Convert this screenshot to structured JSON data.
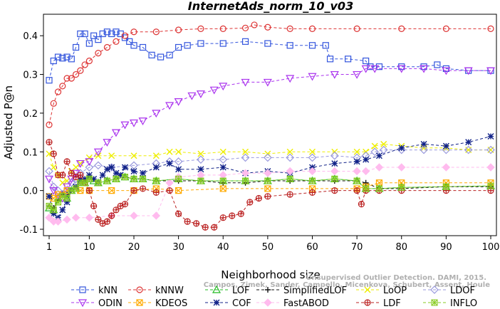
{
  "chart_data": {
    "type": "line",
    "title": "InternetAds_norm_10_v03",
    "xlabel": "Neighborhood size",
    "ylabel": "Adjusted P@n",
    "xlim": [
      1,
      100
    ],
    "ylim": [
      -0.1,
      0.45
    ],
    "xticks": [
      1,
      10,
      20,
      30,
      40,
      50,
      60,
      70,
      80,
      90,
      100
    ],
    "yticks": [
      -0.1,
      0.0,
      0.1,
      0.2,
      0.3,
      0.4
    ],
    "ytick_labels": [
      "-0.1",
      "0.0",
      "0.1",
      "0.2",
      "0.3",
      "0.4"
    ],
    "grid": false,
    "legend_position": "bottom",
    "watermark": "Campos, Zimek, Sander, Campello, Micenková, Schubert, Assent, Houle. On the Evaluation of Unsupervised Outlier Detection. DAMI, 2015.",
    "watermark_visible_lines": [
      "Unsupervised Outlier Detection. DAMI, 2015.",
      "Campos, Zimek, Sander, Campello, Micenkova, Schubert, Assent, Houle"
    ],
    "series": [
      {
        "name": "kNN",
        "color": "#3355dd",
        "marker": "square",
        "linestyle": "dashed",
        "x": [
          1,
          2,
          3,
          4,
          5,
          6,
          7,
          8,
          9,
          10,
          11,
          12,
          13,
          14,
          15,
          16,
          17,
          18,
          19,
          20,
          22,
          24,
          26,
          28,
          30,
          32,
          35,
          40,
          45,
          50,
          55,
          60,
          63,
          64,
          68,
          72,
          73,
          75,
          80,
          85,
          88,
          90,
          95,
          100
        ],
        "y": [
          0.285,
          0.335,
          0.345,
          0.342,
          0.345,
          0.34,
          0.37,
          0.405,
          0.405,
          0.38,
          0.4,
          0.39,
          0.405,
          0.41,
          0.405,
          0.41,
          0.405,
          0.395,
          0.385,
          0.375,
          0.37,
          0.35,
          0.345,
          0.35,
          0.37,
          0.375,
          0.38,
          0.38,
          0.385,
          0.38,
          0.375,
          0.375,
          0.375,
          0.34,
          0.34,
          0.335,
          0.32,
          0.32,
          0.32,
          0.32,
          0.325,
          0.315,
          0.31,
          0.31
        ]
      },
      {
        "name": "kNNW",
        "color": "#dd3333",
        "marker": "circle",
        "linestyle": "dashed",
        "x": [
          1,
          2,
          3,
          4,
          5,
          6,
          7,
          8,
          9,
          10,
          12,
          14,
          16,
          18,
          20,
          25,
          30,
          35,
          40,
          45,
          47,
          50,
          55,
          60,
          70,
          80,
          90,
          100
        ],
        "y": [
          0.17,
          0.225,
          0.255,
          0.27,
          0.29,
          0.29,
          0.3,
          0.31,
          0.325,
          0.335,
          0.355,
          0.37,
          0.385,
          0.4,
          0.41,
          0.41,
          0.415,
          0.418,
          0.418,
          0.42,
          0.428,
          0.422,
          0.418,
          0.418,
          0.418,
          0.418,
          0.418,
          0.418
        ]
      },
      {
        "name": "LOF",
        "color": "#22bb22",
        "marker": "triangle-up",
        "linestyle": "dashed",
        "x": [
          1,
          2,
          3,
          4,
          5,
          6,
          7,
          8,
          9,
          10,
          11,
          12,
          14,
          16,
          18,
          20,
          22,
          25,
          30,
          35,
          40,
          45,
          50,
          55,
          60,
          65,
          70,
          72,
          75,
          80,
          90,
          100
        ],
        "y": [
          -0.045,
          -0.05,
          -0.02,
          -0.01,
          -0.02,
          0.0,
          0.005,
          0.02,
          0.02,
          0.03,
          0.025,
          0.02,
          0.025,
          0.03,
          0.035,
          0.03,
          0.03,
          0.025,
          0.03,
          0.025,
          0.025,
          0.025,
          0.025,
          0.03,
          0.025,
          0.03,
          0.025,
          0.005,
          0.005,
          0.008,
          0.01,
          0.012
        ]
      },
      {
        "name": "SimplifiedLOF",
        "color": "#111111",
        "marker": "plus",
        "linestyle": "dashed",
        "x": [
          1,
          2,
          3,
          4,
          5,
          6,
          7,
          8,
          9,
          10,
          12,
          14,
          16,
          18,
          20,
          22,
          25,
          30,
          35,
          40,
          45,
          50,
          55,
          60,
          65,
          70,
          72,
          75,
          80,
          90,
          100
        ],
        "y": [
          -0.04,
          -0.045,
          -0.025,
          -0.01,
          -0.01,
          0.0,
          0.005,
          0.02,
          0.02,
          0.03,
          0.02,
          0.025,
          0.03,
          0.035,
          0.03,
          0.03,
          0.025,
          0.025,
          0.025,
          0.02,
          0.02,
          0.025,
          0.025,
          0.025,
          0.025,
          0.025,
          0.02,
          0.005,
          0.005,
          0.01,
          0.01
        ]
      },
      {
        "name": "LoOP",
        "color": "#eeee00",
        "marker": "x",
        "linestyle": "dashed",
        "x": [
          1,
          2,
          3,
          4,
          5,
          6,
          7,
          8,
          10,
          12,
          15,
          20,
          25,
          28,
          30,
          35,
          40,
          45,
          50,
          55,
          60,
          65,
          70,
          72,
          74,
          76,
          80,
          85,
          90,
          95,
          100
        ],
        "y": [
          0.095,
          0.06,
          0.04,
          0.02,
          0.025,
          0.05,
          0.06,
          0.07,
          0.085,
          0.09,
          0.09,
          0.09,
          0.09,
          0.1,
          0.1,
          0.095,
          0.1,
          0.1,
          0.095,
          0.1,
          0.1,
          0.1,
          0.1,
          0.1,
          0.115,
          0.12,
          0.115,
          0.11,
          0.11,
          0.105,
          0.105
        ]
      },
      {
        "name": "LDOF",
        "color": "#9999dd",
        "marker": "diamond",
        "linestyle": "dashed",
        "x": [
          1,
          2,
          3,
          4,
          5,
          6,
          7,
          8,
          10,
          12,
          15,
          20,
          25,
          28,
          30,
          35,
          40,
          45,
          50,
          55,
          60,
          65,
          70,
          72,
          74,
          76,
          80,
          85,
          90,
          95,
          100
        ],
        "y": [
          0.05,
          0.01,
          0.0,
          -0.01,
          0.0,
          0.02,
          0.03,
          0.045,
          0.06,
          0.065,
          0.06,
          0.065,
          0.07,
          0.075,
          0.075,
          0.08,
          0.08,
          0.085,
          0.085,
          0.085,
          0.085,
          0.09,
          0.085,
          0.09,
          0.1,
          0.105,
          0.105,
          0.105,
          0.105,
          0.105,
          0.105
        ]
      },
      {
        "name": "ODIN",
        "color": "#aa33ee",
        "marker": "triangle-down",
        "linestyle": "dashed",
        "x": [
          1,
          2,
          3,
          4,
          5,
          6,
          7,
          8,
          10,
          12,
          14,
          16,
          18,
          20,
          22,
          25,
          28,
          30,
          33,
          35,
          38,
          40,
          45,
          50,
          55,
          60,
          65,
          70,
          72,
          74,
          80,
          85,
          90,
          95,
          100
        ],
        "y": [
          0.03,
          0.0,
          -0.01,
          -0.02,
          0.01,
          0.03,
          0.045,
          0.07,
          0.075,
          0.1,
          0.125,
          0.15,
          0.17,
          0.175,
          0.18,
          0.2,
          0.22,
          0.23,
          0.245,
          0.25,
          0.26,
          0.27,
          0.28,
          0.28,
          0.29,
          0.295,
          0.3,
          0.3,
          0.315,
          0.315,
          0.315,
          0.315,
          0.31,
          0.31,
          0.31
        ]
      },
      {
        "name": "KDEOS",
        "color": "#ffaa00",
        "marker": "square-x",
        "linestyle": "dashed",
        "x": [
          1,
          2,
          3,
          5,
          8,
          10,
          15,
          20,
          25,
          30,
          40,
          50,
          60,
          70,
          72,
          75,
          80,
          90,
          100
        ],
        "y": [
          -0.015,
          -0.02,
          -0.01,
          0.0,
          0.0,
          0.0,
          0.0,
          0.0,
          0.005,
          0.0,
          0.005,
          0.005,
          0.005,
          0.005,
          0.01,
          0.02,
          0.02,
          0.02,
          0.02
        ]
      },
      {
        "name": "COF",
        "color": "#112288",
        "marker": "asterisk",
        "linestyle": "dashed",
        "x": [
          1,
          2,
          3,
          4,
          5,
          6,
          7,
          8,
          9,
          10,
          11,
          12,
          13,
          14,
          15,
          16,
          17,
          18,
          20,
          22,
          25,
          28,
          30,
          35,
          40,
          45,
          50,
          55,
          60,
          65,
          70,
          72,
          75,
          80,
          85,
          90,
          95,
          100
        ],
        "y": [
          -0.015,
          -0.06,
          -0.07,
          -0.05,
          -0.03,
          0.0,
          0.01,
          0.03,
          0.03,
          0.04,
          0.03,
          0.02,
          0.04,
          0.055,
          0.06,
          0.045,
          0.04,
          0.06,
          0.05,
          0.045,
          0.06,
          0.07,
          0.055,
          0.055,
          0.06,
          0.045,
          0.05,
          0.045,
          0.06,
          0.07,
          0.075,
          0.08,
          0.09,
          0.11,
          0.12,
          0.115,
          0.125,
          0.14
        ]
      },
      {
        "name": "FastABOD",
        "color": "#ffbbee",
        "marker": "diamond-filled",
        "linestyle": "dashed",
        "x": [
          1,
          2,
          3,
          5,
          7,
          10,
          15,
          20,
          25,
          28,
          30,
          35,
          40,
          45,
          50,
          55,
          60,
          65,
          70,
          72,
          75,
          80,
          90,
          100
        ],
        "y": [
          -0.07,
          -0.08,
          -0.08,
          -0.075,
          -0.07,
          -0.07,
          -0.065,
          -0.065,
          -0.065,
          0.02,
          0.035,
          0.04,
          0.04,
          0.045,
          0.045,
          0.05,
          0.05,
          0.05,
          0.05,
          0.05,
          0.06,
          0.06,
          0.06,
          0.06
        ]
      },
      {
        "name": "LDF",
        "color": "#bb2222",
        "marker": "circle-plus",
        "linestyle": "dashed",
        "x": [
          1,
          2,
          3,
          4,
          5,
          6,
          7,
          8,
          9,
          10,
          11,
          12,
          13,
          14,
          15,
          16,
          17,
          18,
          20,
          22,
          25,
          28,
          30,
          32,
          34,
          36,
          38,
          40,
          42,
          44,
          46,
          48,
          50,
          55,
          60,
          65,
          70,
          71,
          72,
          75,
          80,
          90,
          100
        ],
        "y": [
          0.125,
          0.095,
          0.04,
          0.04,
          0.075,
          0.045,
          0.035,
          0.04,
          0.02,
          0.0,
          -0.04,
          -0.075,
          -0.085,
          -0.08,
          -0.065,
          -0.05,
          -0.04,
          -0.035,
          0.0,
          0.005,
          -0.005,
          0.0,
          -0.06,
          -0.08,
          -0.085,
          -0.095,
          -0.095,
          -0.07,
          -0.065,
          -0.06,
          -0.03,
          -0.02,
          -0.015,
          -0.01,
          -0.005,
          0.0,
          0.0,
          -0.035,
          0.0,
          0.0,
          0.0,
          0.0,
          0.0
        ]
      },
      {
        "name": "INFLO",
        "color": "#88cc22",
        "marker": "star-square",
        "linestyle": "dashed",
        "x": [
          1,
          2,
          3,
          4,
          5,
          6,
          7,
          8,
          9,
          10,
          12,
          14,
          16,
          18,
          20,
          22,
          25,
          30,
          35,
          40,
          45,
          50,
          55,
          60,
          65,
          70,
          72,
          75,
          80,
          90,
          100
        ],
        "y": [
          -0.04,
          -0.05,
          -0.03,
          -0.015,
          -0.02,
          0.0,
          0.005,
          0.02,
          0.02,
          0.03,
          0.02,
          0.025,
          0.03,
          0.035,
          0.03,
          0.03,
          0.025,
          0.03,
          0.025,
          0.025,
          0.025,
          0.025,
          0.03,
          0.025,
          0.03,
          0.025,
          0.005,
          0.005,
          0.008,
          0.01,
          0.012
        ]
      }
    ]
  }
}
